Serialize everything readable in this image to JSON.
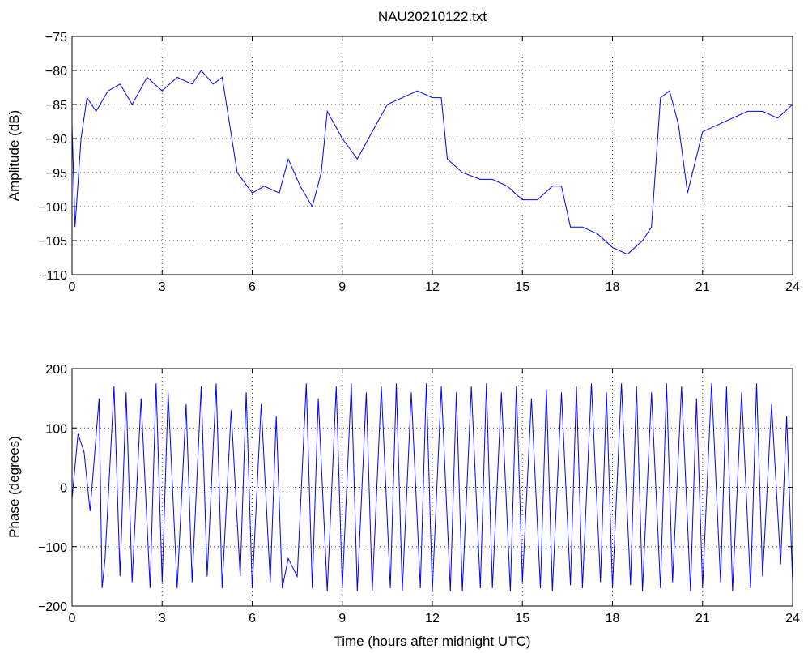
{
  "chart_data": [
    {
      "type": "line",
      "title": "NAU20210122.txt",
      "xlabel": "",
      "ylabel": "Amplitude (dB)",
      "xlim": [
        0,
        24
      ],
      "ylim": [
        -110,
        -75
      ],
      "xticks": [
        "0",
        "3",
        "6",
        "9",
        "12",
        "15",
        "18",
        "21",
        "24"
      ],
      "yticks": [
        "-75",
        "-80",
        "-85",
        "-90",
        "-95",
        "-100",
        "-105",
        "-110"
      ],
      "grid": true,
      "series_color": "#0000ff",
      "series": [
        {
          "name": "",
          "x": [
            0,
            0.1,
            0.3,
            0.5,
            0.8,
            1.2,
            1.6,
            2.0,
            2.5,
            3.0,
            3.5,
            4.0,
            4.3,
            4.7,
            5.0,
            5.5,
            6.0,
            6.4,
            6.9,
            7.2,
            7.6,
            8.0,
            8.3,
            8.5,
            9.0,
            9.5,
            10.0,
            10.5,
            11.0,
            11.5,
            12.0,
            12.3,
            12.5,
            13.0,
            13.6,
            14.0,
            14.5,
            15.0,
            15.5,
            16.0,
            16.3,
            16.6,
            17.0,
            17.5,
            18.0,
            18.5,
            19.0,
            19.3,
            19.6,
            19.9,
            20.2,
            20.5,
            21.0,
            21.5,
            22.0,
            22.5,
            23.0,
            23.5,
            24.0
          ],
          "y": [
            -88,
            -103,
            -90,
            -84,
            -86,
            -83,
            -82,
            -85,
            -81,
            -83,
            -81,
            -82,
            -80,
            -82,
            -81,
            -95,
            -98,
            -97,
            -98,
            -93,
            -97,
            -100,
            -95,
            -86,
            -90,
            -93,
            -89,
            -85,
            -84,
            -83,
            -84,
            -84,
            -93,
            -95,
            -96,
            -96,
            -97,
            -99,
            -99,
            -97,
            -97,
            -103,
            -103,
            -104,
            -106,
            -107,
            -105,
            -103,
            -84,
            -83,
            -88,
            -98,
            -89,
            -88,
            -87,
            -86,
            -86,
            -87,
            -85
          ]
        }
      ]
    },
    {
      "type": "line",
      "title": "",
      "xlabel": "Time (hours after midnight UTC)",
      "ylabel": "Phase (degrees)",
      "xlim": [
        0,
        24
      ],
      "ylim": [
        -200,
        200
      ],
      "xticks": [
        "0",
        "3",
        "6",
        "9",
        "12",
        "15",
        "18",
        "21",
        "24"
      ],
      "yticks": [
        "200",
        "100",
        "0",
        "-100",
        "-200"
      ],
      "grid": true,
      "series_color": "#0000ff",
      "series": [
        {
          "name": "",
          "x": [
            0,
            0.2,
            0.4,
            0.6,
            0.9,
            1.0,
            1.1,
            1.4,
            1.6,
            1.8,
            2.0,
            2.3,
            2.6,
            2.8,
            3.0,
            3.2,
            3.5,
            3.8,
            4.0,
            4.3,
            4.5,
            4.8,
            5.0,
            5.3,
            5.6,
            5.8,
            6.0,
            6.3,
            6.6,
            6.8,
            7.0,
            7.2,
            7.5,
            7.8,
            8.0,
            8.2,
            8.5,
            8.8,
            9.0,
            9.3,
            9.5,
            9.8,
            10.0,
            10.3,
            10.6,
            10.8,
            11.0,
            11.3,
            11.6,
            11.8,
            12.0,
            12.3,
            12.6,
            12.8,
            13.0,
            13.3,
            13.6,
            13.8,
            14.0,
            14.3,
            14.6,
            14.8,
            15.0,
            15.3,
            15.6,
            15.8,
            16.0,
            16.3,
            16.6,
            16.8,
            17.0,
            17.3,
            17.6,
            17.8,
            18.0,
            18.3,
            18.6,
            18.8,
            19.0,
            19.3,
            19.6,
            19.8,
            20.0,
            20.3,
            20.6,
            20.8,
            21.0,
            21.3,
            21.6,
            21.8,
            22.0,
            22.3,
            22.6,
            22.8,
            23.0,
            23.3,
            23.6,
            23.8,
            24.0
          ],
          "y": [
            -20,
            90,
            60,
            -40,
            150,
            -170,
            -120,
            170,
            -150,
            160,
            -160,
            150,
            -170,
            175,
            -160,
            160,
            -170,
            140,
            -160,
            170,
            -150,
            175,
            -170,
            130,
            -150,
            160,
            -170,
            140,
            -160,
            120,
            -170,
            -120,
            -150,
            175,
            -170,
            150,
            -175,
            170,
            -170,
            175,
            -175,
            160,
            -175,
            170,
            -170,
            175,
            -175,
            160,
            -170,
            175,
            -175,
            170,
            -175,
            160,
            -175,
            170,
            -170,
            175,
            -170,
            160,
            -175,
            170,
            -160,
            150,
            -170,
            165,
            -175,
            160,
            -165,
            170,
            -170,
            175,
            -160,
            160,
            -170,
            175,
            -165,
            170,
            -175,
            160,
            -170,
            175,
            -160,
            170,
            -175,
            150,
            -170,
            175,
            -160,
            170,
            -175,
            160,
            -170,
            175,
            -150,
            140,
            -130,
            120,
            -160
          ]
        }
      ]
    }
  ]
}
